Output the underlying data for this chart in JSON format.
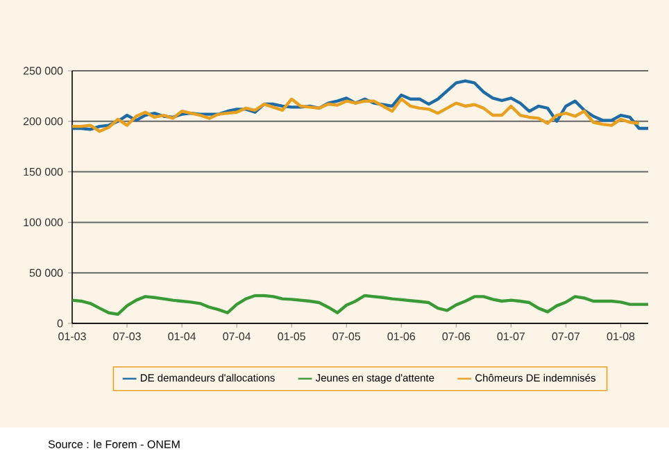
{
  "chart_data": {
    "type": "line",
    "x": [
      "2003-01",
      "2003-02",
      "2003-03",
      "2003-04",
      "2003-05",
      "2003-06",
      "2003-07",
      "2003-08",
      "2003-09",
      "2003-10",
      "2003-11",
      "2003-12",
      "2004-01",
      "2004-02",
      "2004-03",
      "2004-04",
      "2004-05",
      "2004-06",
      "2004-07",
      "2004-08",
      "2004-09",
      "2004-10",
      "2004-11",
      "2004-12",
      "2005-01",
      "2005-02",
      "2005-03",
      "2005-04",
      "2005-05",
      "2005-06",
      "2005-07",
      "2005-08",
      "2005-09",
      "2005-10",
      "2005-11",
      "2005-12",
      "2006-01",
      "2006-02",
      "2006-03",
      "2006-04",
      "2006-05",
      "2006-06",
      "2006-07",
      "2006-08",
      "2006-09",
      "2006-10",
      "2006-11",
      "2006-12",
      "2007-01",
      "2007-02",
      "2007-03",
      "2007-04",
      "2007-05",
      "2007-06",
      "2007-07",
      "2007-08",
      "2007-09",
      "2007-10",
      "2007-11",
      "2007-12",
      "2008-01",
      "2008-02",
      "2008-03",
      "2008-04"
    ],
    "series": [
      {
        "name": "DE demandeurs d'allocations",
        "color": "#1f6ba5",
        "values": [
          193000,
          193000,
          192000,
          195000,
          196000,
          200000,
          206000,
          201000,
          206000,
          208000,
          205000,
          204000,
          207000,
          208000,
          207000,
          207000,
          207000,
          210000,
          212000,
          212000,
          209000,
          217000,
          217000,
          215000,
          214000,
          214000,
          215000,
          213000,
          218000,
          220000,
          223000,
          218000,
          222000,
          218000,
          216500,
          215000,
          226000,
          222000,
          222000,
          217000,
          222000,
          230000,
          238000,
          240000,
          238000,
          229000,
          223000,
          220500,
          223000,
          218000,
          210000,
          215000,
          213000,
          200000,
          215000,
          220000,
          211000,
          205000,
          201000,
          201000,
          206000,
          204000,
          193000,
          193000
        ]
      },
      {
        "name": "Jeunes en stage d'attente",
        "color": "#3a9a35",
        "values": [
          22900,
          22000,
          19700,
          15000,
          10500,
          9000,
          17400,
          22900,
          26500,
          25600,
          24300,
          22900,
          22000,
          21000,
          19700,
          16000,
          13700,
          10500,
          18800,
          24300,
          27500,
          27500,
          26500,
          24300,
          23800,
          22900,
          22000,
          20600,
          16000,
          10500,
          18000,
          22000,
          27500,
          26500,
          25600,
          24300,
          23400,
          22500,
          21600,
          20600,
          15000,
          12800,
          18300,
          22000,
          26500,
          26500,
          23800,
          22000,
          22900,
          22000,
          20600,
          15000,
          11400,
          17400,
          21000,
          26500,
          25100,
          22000,
          22000,
          22000,
          21000,
          18800,
          18800,
          18800
        ]
      },
      {
        "name": "Chômeurs DE indemnisés",
        "color": "#e8a020",
        "values": [
          195000,
          195000,
          196000,
          190000,
          194000,
          202000,
          196000,
          205000,
          209000,
          204000,
          206000,
          203000,
          210000,
          208000,
          206000,
          203000,
          207000,
          208000,
          209000,
          213000,
          211000,
          217000,
          214000,
          211000,
          222000,
          215000,
          214000,
          213000,
          217000,
          216000,
          220000,
          218000,
          220000,
          220000,
          215000,
          210000,
          222000,
          215000,
          213000,
          212000,
          208000,
          213000,
          218000,
          215000,
          216500,
          213000,
          206000,
          206000,
          215000,
          206000,
          204000,
          203000,
          198000,
          206000,
          208000,
          205000,
          210000,
          199000,
          197000,
          196000,
          202000,
          199000,
          198000,
          null
        ]
      }
    ],
    "xlim": [
      "2003-01",
      "2008-04"
    ],
    "xticks": [
      {
        "value": "2003-01",
        "label": "01-03"
      },
      {
        "value": "2003-07",
        "label": "07-03"
      },
      {
        "value": "2004-01",
        "label": "01-04"
      },
      {
        "value": "2004-07",
        "label": "07-04"
      },
      {
        "value": "2005-01",
        "label": "01-05"
      },
      {
        "value": "2005-07",
        "label": "07-05"
      },
      {
        "value": "2006-01",
        "label": "01-06"
      },
      {
        "value": "2006-07",
        "label": "07-06"
      },
      {
        "value": "2007-01",
        "label": "01-07"
      },
      {
        "value": "2007-07",
        "label": "07-07"
      },
      {
        "value": "2008-01",
        "label": "01-08"
      }
    ],
    "ylim": [
      0,
      250000
    ],
    "yticks": [
      0,
      {
        "value": 50000,
        "label": "50 000"
      },
      {
        "value": 100000,
        "label": "100 000"
      },
      {
        "value": 150000,
        "label": "150 000"
      },
      {
        "value": 200000,
        "label": "200 000"
      },
      {
        "value": 250000,
        "label": "250 000"
      }
    ],
    "grid": "y",
    "legend": "bottom",
    "marker": "none",
    "line_style": "solid",
    "annotations": [
      "Source : le Forem - ONEM"
    ]
  }
}
